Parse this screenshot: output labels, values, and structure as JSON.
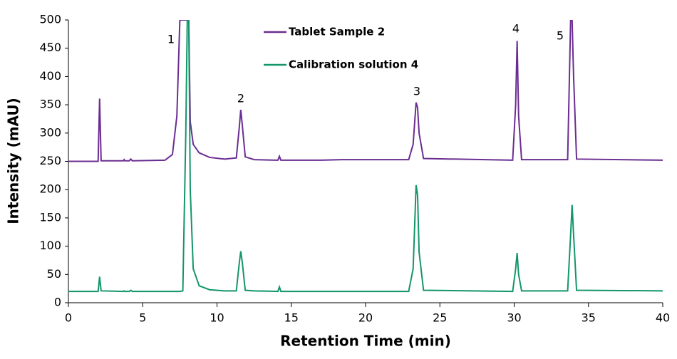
{
  "chart_data": {
    "type": "line",
    "x_label": "Retention Time (min)",
    "y_label": "Intensity (mAU)",
    "x": [
      0,
      2.0,
      2.1,
      2.2,
      3.7,
      3.75,
      3.8,
      4.1,
      4.2,
      4.3,
      6.5,
      7.0,
      7.3,
      7.5,
      7.7,
      7.9,
      8.0,
      8.1,
      8.2,
      8.4,
      8.8,
      9.5,
      10.5,
      11.3,
      11.5,
      11.6,
      11.7,
      11.9,
      12.5,
      14.1,
      14.2,
      14.3,
      17,
      18.4,
      22.9,
      23.2,
      23.4,
      23.5,
      23.6,
      23.9,
      29.9,
      30.1,
      30.2,
      30.3,
      30.5,
      32.5,
      33.6,
      33.8,
      33.9,
      34.0,
      34.2,
      40
    ],
    "series": [
      {
        "name": "Tablet Sample 2",
        "color": "#6b2d91",
        "values": [
          250,
          250,
          361,
          251,
          251,
          253,
          251,
          251,
          254,
          251,
          252,
          262,
          330,
          500,
          500,
          500,
          500,
          500,
          320,
          280,
          265,
          257,
          254,
          256,
          310,
          341,
          315,
          258,
          253,
          252,
          259,
          252,
          252,
          253,
          253,
          280,
          354,
          345,
          300,
          255,
          252,
          350,
          463,
          330,
          253,
          253,
          253,
          500,
          500,
          400,
          254,
          252
        ]
      },
      {
        "name": "Calibration solution 4",
        "color": "#14956b",
        "values": [
          20,
          20,
          46,
          21,
          20,
          21,
          20,
          20,
          22,
          20,
          20,
          20,
          20,
          20,
          21,
          300,
          500,
          500,
          200,
          60,
          30,
          23,
          21,
          21,
          70,
          91,
          72,
          22,
          21,
          20,
          28,
          20,
          20,
          20,
          20,
          60,
          208,
          190,
          90,
          22,
          20,
          60,
          88,
          50,
          21,
          21,
          21,
          120,
          173,
          120,
          22,
          21
        ]
      }
    ],
    "annotations": [
      "1",
      "2",
      "3",
      "4",
      "5"
    ],
    "xlim": [
      0,
      40
    ],
    "xticks": [
      0,
      5,
      10,
      15,
      20,
      25,
      30,
      35,
      40
    ],
    "ylim": [
      0,
      500
    ],
    "yticks": [
      0,
      50,
      100,
      150,
      200,
      250,
      300,
      350,
      400,
      450,
      500
    ],
    "grid": false
  }
}
